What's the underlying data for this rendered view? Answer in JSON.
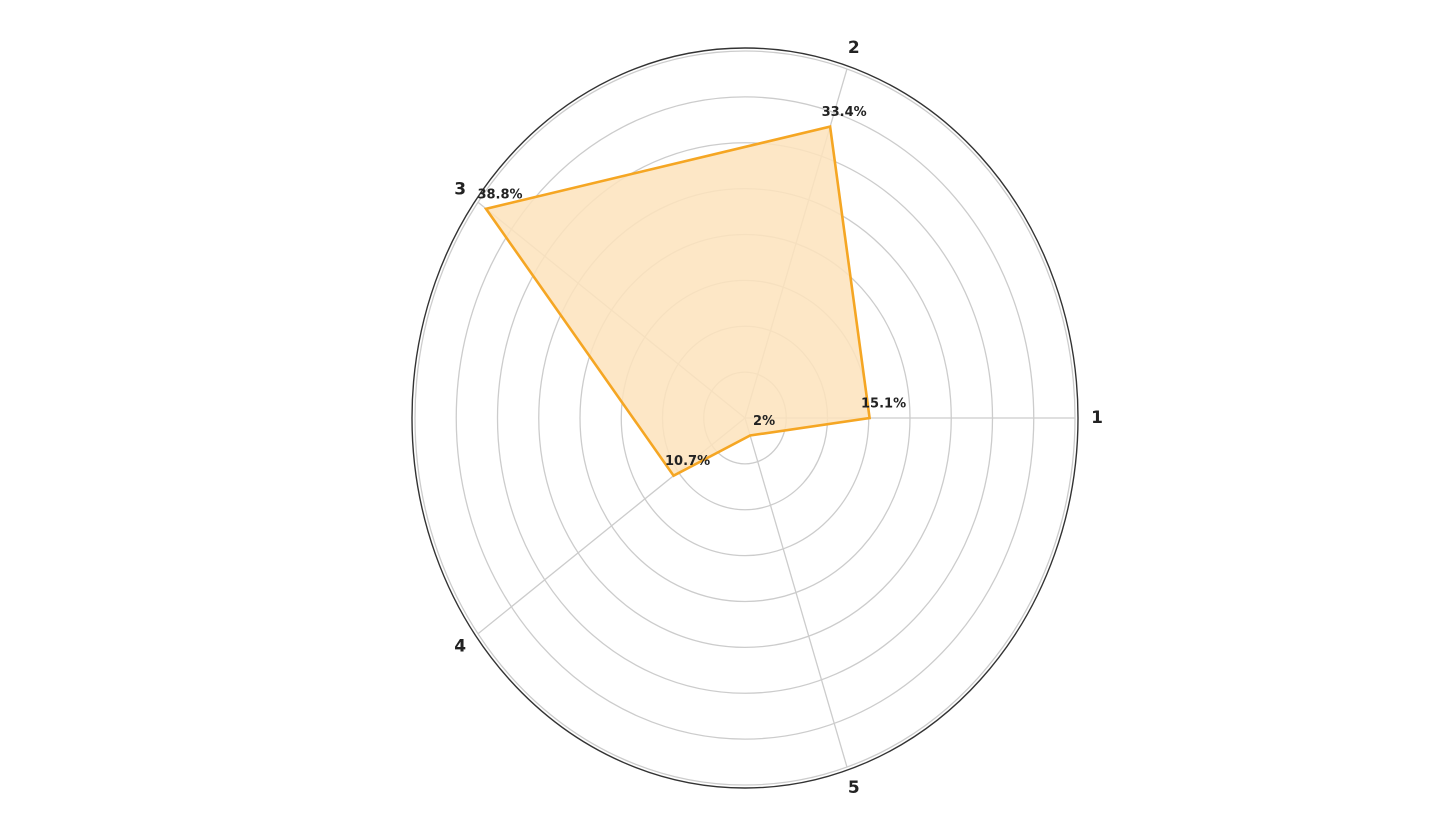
{
  "chart_data": {
    "type": "radar",
    "categories": [
      "1",
      "2",
      "3",
      "4",
      "5"
    ],
    "series": [
      {
        "values": [
          15.1,
          33.4,
          38.8,
          10.7,
          2
        ],
        "labels": [
          "15.1%",
          "33.4%",
          "38.8%",
          "10.7%",
          "2%"
        ]
      }
    ],
    "rlim": [
      0,
      40
    ],
    "ring_step": 5,
    "grid": true,
    "colors": {
      "line": "#f5a623",
      "fill": "#fde3bc",
      "grid": "#cccccc",
      "frame": "#333333",
      "text": "#222222"
    }
  }
}
